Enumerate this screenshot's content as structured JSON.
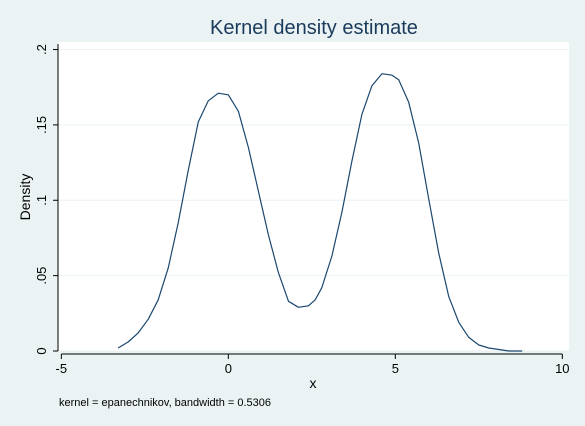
{
  "chart_data": {
    "type": "line",
    "title": "Kernel density estimate",
    "xlabel": "x",
    "ylabel": "Density",
    "note": "kernel = epanechnikov, bandwidth = 0.5306",
    "xlim": [
      -5.1,
      10.2
    ],
    "ylim": [
      0,
      0.205
    ],
    "xticks": [
      -5,
      0,
      5,
      10
    ],
    "xtick_labels": [
      "-5",
      "0",
      "5",
      "10"
    ],
    "yticks": [
      0,
      0.05,
      0.1,
      0.15,
      0.2
    ],
    "ytick_labels": [
      "0",
      ".05",
      ".1",
      ".15",
      ".2"
    ],
    "grid": true,
    "series": [
      {
        "color": "#1a476f",
        "x": [
          -3.3,
          -3.0,
          -2.7,
          -2.4,
          -2.1,
          -1.8,
          -1.5,
          -1.2,
          -0.9,
          -0.6,
          -0.3,
          0.0,
          0.3,
          0.6,
          0.9,
          1.2,
          1.5,
          1.8,
          2.1,
          2.4,
          2.6,
          2.8,
          3.1,
          3.4,
          3.7,
          4.0,
          4.3,
          4.6,
          4.9,
          5.1,
          5.4,
          5.7,
          6.0,
          6.3,
          6.6,
          6.9,
          7.2,
          7.5,
          7.8,
          8.1,
          8.4,
          8.7,
          8.8
        ],
        "y": [
          0.002,
          0.006,
          0.012,
          0.021,
          0.034,
          0.055,
          0.085,
          0.12,
          0.152,
          0.166,
          0.171,
          0.17,
          0.159,
          0.135,
          0.106,
          0.077,
          0.052,
          0.033,
          0.029,
          0.03,
          0.034,
          0.042,
          0.063,
          0.092,
          0.126,
          0.157,
          0.176,
          0.184,
          0.183,
          0.18,
          0.165,
          0.138,
          0.101,
          0.065,
          0.036,
          0.019,
          0.009,
          0.004,
          0.002,
          0.001,
          0.0,
          0.0,
          0.0
        ]
      }
    ]
  }
}
